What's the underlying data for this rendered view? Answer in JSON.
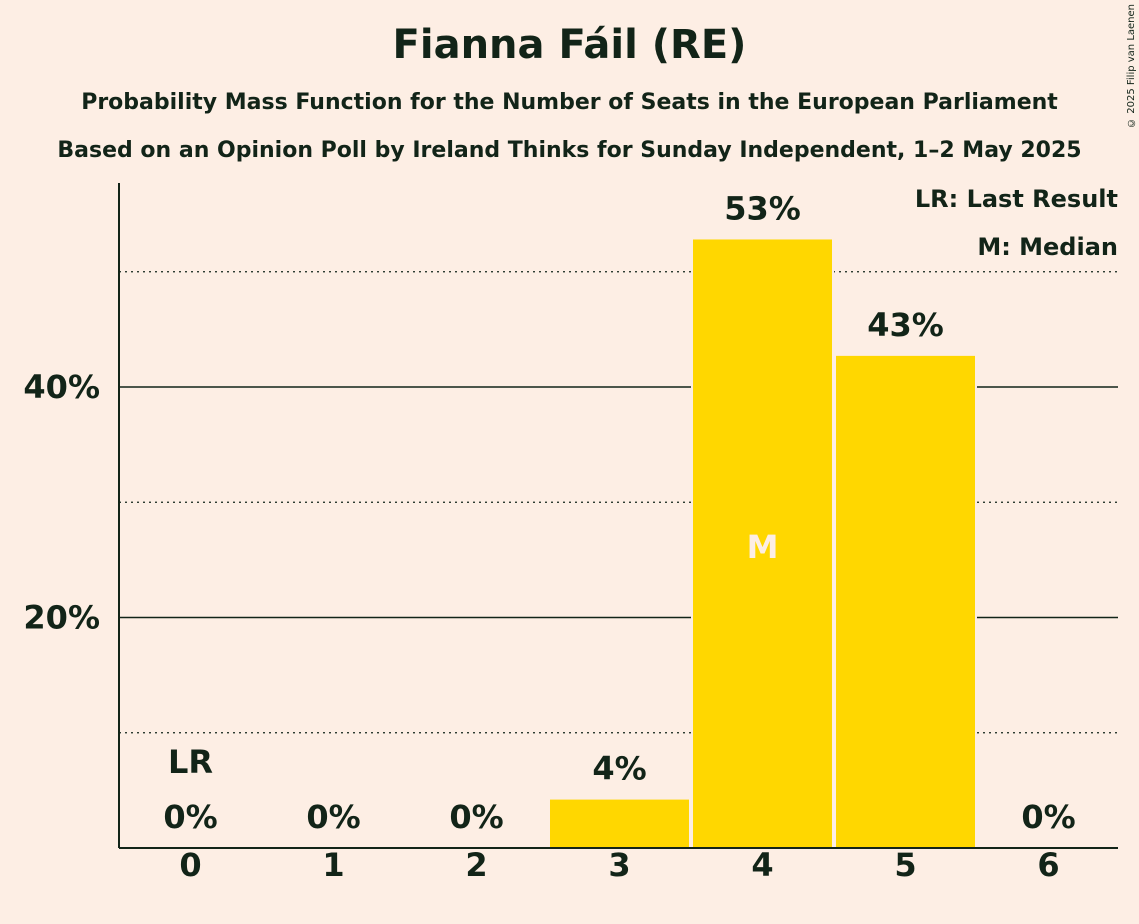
{
  "chart_data": {
    "type": "bar",
    "title": "Fianna Fáil (RE)",
    "subtitle_1": "Probability Mass Function for the Number of Seats in the European Parliament",
    "subtitle_2": "Based on an Opinion Poll by Ireland Thinks for Sunday Independent, 1–2 May 2025",
    "copyright": "© 2025 Filip van Laenen",
    "legend": {
      "last_result": "LR: Last Result",
      "median": "M: Median"
    },
    "categories": [
      "0",
      "1",
      "2",
      "3",
      "4",
      "5",
      "6"
    ],
    "values": [
      0,
      0,
      0,
      4.2,
      52.8,
      42.7,
      0
    ],
    "value_labels": [
      "0%",
      "0%",
      "0%",
      "4%",
      "53%",
      "43%",
      "0%"
    ],
    "last_result_category": "0",
    "last_result_marker": "LR",
    "median_category": "4",
    "median_marker": "M",
    "ylim": [
      0,
      57.7
    ],
    "yticks": [
      {
        "value": 20,
        "label": "20%"
      },
      {
        "value": 40,
        "label": "40%"
      }
    ],
    "minor_gridlines": [
      10,
      30,
      50
    ],
    "colors": {
      "bar": "#FFD700",
      "background": "#FDEEE4",
      "text": "#122418",
      "median_marker": "#FDEEE4"
    }
  }
}
